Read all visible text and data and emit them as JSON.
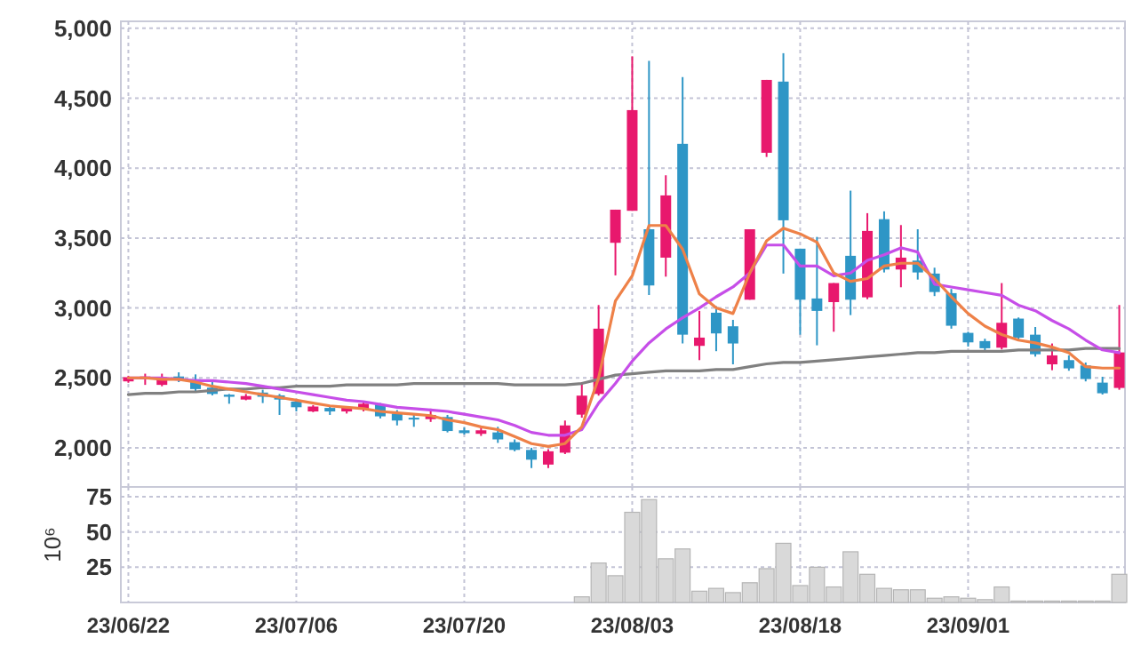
{
  "chart_data": [
    {
      "type": "candlestick",
      "categories": [
        null,
        null,
        null,
        null,
        null,
        null,
        null,
        null,
        null,
        null,
        null,
        null,
        null,
        null,
        null,
        null,
        null,
        null,
        null,
        null,
        null,
        null,
        null,
        null,
        null,
        null,
        null,
        null,
        null,
        null,
        null,
        null,
        null,
        null,
        null,
        null,
        null,
        null,
        null,
        null,
        null,
        null,
        null,
        null,
        null,
        null,
        null,
        null,
        null,
        null,
        null,
        null,
        null,
        null,
        null,
        null,
        null,
        null,
        null,
        null
      ],
      "ohlc": [
        [
          2475,
          2515,
          2465,
          2505
        ],
        [
          2490,
          2530,
          2450,
          2510
        ],
        [
          2450,
          2530,
          2440,
          2490
        ],
        [
          2510,
          2540,
          2470,
          2490
        ],
        [
          2490,
          2525,
          2405,
          2420
        ],
        [
          2430,
          2470,
          2375,
          2385
        ],
        [
          2380,
          2385,
          2315,
          2365
        ],
        [
          2345,
          2385,
          2340,
          2370
        ],
        [
          2395,
          2415,
          2320,
          2365
        ],
        [
          2375,
          2385,
          2235,
          2345
        ],
        [
          2330,
          2340,
          2260,
          2290
        ],
        [
          2260,
          2305,
          2255,
          2295
        ],
        [
          2285,
          2295,
          2235,
          2260
        ],
        [
          2260,
          2295,
          2245,
          2290
        ],
        [
          2280,
          2330,
          2260,
          2315
        ],
        [
          2310,
          2320,
          2210,
          2225
        ],
        [
          2245,
          2270,
          2160,
          2195
        ],
        [
          2215,
          2235,
          2150,
          2205
        ],
        [
          2205,
          2280,
          2185,
          2235
        ],
        [
          2220,
          2235,
          2110,
          2120
        ],
        [
          2125,
          2145,
          2095,
          2105
        ],
        [
          2100,
          2145,
          2085,
          2125
        ],
        [
          2110,
          2150,
          2035,
          2060
        ],
        [
          2040,
          2060,
          1975,
          1985
        ],
        [
          1985,
          2000,
          1855,
          1915
        ],
        [
          1880,
          1990,
          1855,
          1975
        ],
        [
          1965,
          2195,
          1955,
          2160
        ],
        [
          2237,
          2470,
          2215,
          2373
        ],
        [
          2385,
          3021,
          2373,
          2852
        ],
        [
          3466,
          3703,
          3233,
          3703
        ],
        [
          3695,
          4800,
          3695,
          4415
        ],
        [
          3563,
          4767,
          3093,
          3161
        ],
        [
          3360,
          3949,
          3224,
          3805
        ],
        [
          4174,
          4652,
          2746,
          2809
        ],
        [
          2729,
          2979,
          2627,
          2788
        ],
        [
          2966,
          3013,
          2691,
          2818
        ],
        [
          2869,
          2915,
          2597,
          2746
        ],
        [
          3059,
          3563,
          3059,
          3563
        ],
        [
          4110,
          4631,
          4080,
          4631
        ],
        [
          4619,
          4822,
          3246,
          3627
        ],
        [
          3424,
          3424,
          2809,
          3059
        ],
        [
          3068,
          3508,
          2733,
          2979
        ],
        [
          3042,
          3178,
          2830,
          3178
        ],
        [
          3373,
          3839,
          2949,
          3059
        ],
        [
          3076,
          3678,
          3063,
          3551
        ],
        [
          3635,
          3691,
          3254,
          3275
        ],
        [
          3275,
          3593,
          3148,
          3360
        ],
        [
          3339,
          3563,
          3203,
          3254
        ],
        [
          3246,
          3288,
          3085,
          3114
        ],
        [
          3106,
          3136,
          2852,
          2873
        ],
        [
          2822,
          2830,
          2724,
          2754
        ],
        [
          2763,
          2780,
          2695,
          2712
        ],
        [
          2716,
          3178,
          2703,
          2894
        ],
        [
          2924,
          2932,
          2767,
          2788
        ],
        [
          2809,
          2864,
          2652,
          2669
        ],
        [
          2597,
          2746,
          2555,
          2661
        ],
        [
          2627,
          2661,
          2551,
          2568
        ],
        [
          2589,
          2610,
          2475,
          2492
        ],
        [
          2466,
          2508,
          2381,
          2390
        ],
        [
          2428,
          3021,
          2415,
          2682
        ]
      ],
      "colors": [
        "#e8186d",
        "#e8186d",
        "#e8186d",
        "#2e96c6",
        "#2e96c6",
        "#2e96c6",
        "#2e96c6",
        "#e8186d",
        "#2e96c6",
        "#2e96c6",
        "#2e96c6",
        "#e8186d",
        "#2e96c6",
        "#e8186d",
        "#e8186d",
        "#2e96c6",
        "#2e96c6",
        "#2e96c6",
        "#e8186d",
        "#2e96c6",
        "#2e96c6",
        "#e8186d",
        "#2e96c6",
        "#2e96c6",
        "#2e96c6",
        "#e8186d",
        "#e8186d",
        "#e8186d",
        "#e8186d",
        "#e8186d",
        "#e8186d",
        "#2e96c6",
        "#e8186d",
        "#2e96c6",
        "#e8186d",
        "#2e96c6",
        "#2e96c6",
        "#e8186d",
        "#e8186d",
        "#2e96c6",
        "#2e96c6",
        "#2e96c6",
        "#e8186d",
        "#2e96c6",
        "#e8186d",
        "#2e96c6",
        "#e8186d",
        "#2e96c6",
        "#2e96c6",
        "#2e96c6",
        "#2e96c6",
        "#2e96c6",
        "#e8186d",
        "#2e96c6",
        "#2e96c6",
        "#e8186d",
        "#2e96c6",
        "#2e96c6",
        "#2e96c6",
        "#e8186d"
      ],
      "series": [
        {
          "type": "line",
          "color": "#808080",
          "values": [
            2380,
            2390,
            2390,
            2400,
            2400,
            2410,
            2420,
            2420,
            2430,
            2430,
            2440,
            2440,
            2440,
            2450,
            2450,
            2450,
            2450,
            2460,
            2460,
            2460,
            2460,
            2460,
            2460,
            2450,
            2450,
            2450,
            2450,
            2460,
            2490,
            2520,
            2530,
            2540,
            2550,
            2550,
            2550,
            2560,
            2560,
            2580,
            2600,
            2610,
            2610,
            2620,
            2630,
            2640,
            2650,
            2660,
            2670,
            2680,
            2680,
            2690,
            2690,
            2690,
            2690,
            2700,
            2700,
            2700,
            2700,
            2710,
            2710,
            2710
          ]
        },
        {
          "type": "line",
          "color": "#c64ee8",
          "values": [
            2500,
            2500,
            2500,
            2490,
            2480,
            2480,
            2470,
            2460,
            2440,
            2420,
            2400,
            2380,
            2360,
            2340,
            2330,
            2310,
            2290,
            2280,
            2270,
            2260,
            2240,
            2220,
            2200,
            2160,
            2110,
            2090,
            2090,
            2130,
            2320,
            2460,
            2620,
            2750,
            2850,
            2930,
            3000,
            3080,
            3150,
            3250,
            3450,
            3450,
            3300,
            3300,
            3230,
            3250,
            3340,
            3380,
            3430,
            3400,
            3170,
            3150,
            3130,
            3110,
            3090,
            3020,
            2980,
            2910,
            2850,
            2770,
            2700,
            2680
          ]
        },
        {
          "type": "line",
          "color": "#ee8148",
          "values": [
            2500,
            2500,
            2490,
            2490,
            2470,
            2440,
            2420,
            2400,
            2380,
            2360,
            2340,
            2320,
            2300,
            2290,
            2280,
            2260,
            2250,
            2240,
            2230,
            2200,
            2180,
            2150,
            2130,
            2080,
            2030,
            2010,
            2030,
            2150,
            2500,
            3050,
            3230,
            3590,
            3590,
            3420,
            3100,
            3000,
            2960,
            3250,
            3480,
            3570,
            3530,
            3470,
            3250,
            3190,
            3210,
            3300,
            3320,
            3320,
            3210,
            3080,
            2960,
            2870,
            2810,
            2770,
            2750,
            2720,
            2680,
            2580,
            2570,
            2570
          ]
        }
      ],
      "ylim": [
        1720,
        5050
      ],
      "yticks": [
        {
          "value": 2000,
          "label": "2,000"
        },
        {
          "value": 2500,
          "label": "2,500"
        },
        {
          "value": 3000,
          "label": "3,000"
        },
        {
          "value": 3500,
          "label": "3,500"
        },
        {
          "value": 4000,
          "label": "4,000"
        },
        {
          "value": 4500,
          "label": "4,500"
        },
        {
          "value": 5000,
          "label": "5,000"
        }
      ],
      "grid": true,
      "tick_labels": "y"
    },
    {
      "type": "bar",
      "categories": [
        "23/06/22",
        null,
        null,
        null,
        null,
        null,
        null,
        null,
        null,
        null,
        "23/07/06",
        null,
        null,
        null,
        null,
        null,
        null,
        null,
        null,
        null,
        "23/07/20",
        null,
        null,
        null,
        null,
        null,
        null,
        null,
        null,
        null,
        "23/08/03",
        null,
        null,
        null,
        null,
        null,
        null,
        null,
        null,
        null,
        "23/08/18",
        null,
        null,
        null,
        null,
        null,
        null,
        null,
        null,
        null,
        "23/09/01",
        null,
        null,
        null,
        null,
        null,
        null,
        null,
        null,
        null
      ],
      "values": [
        0,
        0,
        0,
        0,
        0,
        0,
        0,
        0,
        0,
        0,
        0,
        0,
        0,
        0,
        0,
        0,
        0,
        0,
        0,
        0,
        0,
        0,
        0,
        0,
        0,
        0,
        0,
        4,
        28,
        19,
        64,
        73,
        31,
        38,
        8,
        10,
        7,
        14,
        24,
        42,
        12,
        25,
        11,
        36,
        20,
        10,
        9,
        9,
        3,
        4,
        3,
        2,
        11,
        1,
        1,
        1,
        1,
        1,
        1,
        20
      ],
      "color": "#d9d9d9",
      "ylabel": "10⁶",
      "ylim": [
        0,
        82
      ],
      "yticks": [
        25,
        50,
        75
      ],
      "grid": true
    }
  ]
}
